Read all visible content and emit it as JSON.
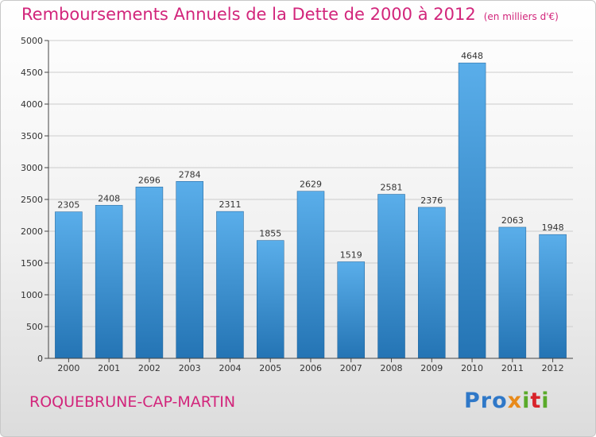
{
  "title": "Remboursements Annuels de la Dette de 2000 à 2012",
  "unit_note": "(en milliers d'€)",
  "city": "ROQUEBRUNE-CAP-MARTIN",
  "logo": {
    "p1": "Pro",
    "p2": "x",
    "p3": "i",
    "p4": "t",
    "p5": "i"
  },
  "colors": {
    "title": "#d2257b",
    "bar_top": "#5aaeea",
    "bar_bottom": "#2474b4",
    "axis": "#444444",
    "grid": "#cccccc"
  },
  "chart_data": {
    "type": "bar",
    "categories": [
      "2000",
      "2001",
      "2002",
      "2003",
      "2004",
      "2005",
      "2006",
      "2007",
      "2008",
      "2009",
      "2010",
      "2011",
      "2012"
    ],
    "values": [
      2305,
      2408,
      2696,
      2784,
      2311,
      1855,
      2629,
      1519,
      2581,
      2376,
      4648,
      2063,
      1948
    ],
    "yticks": [
      0,
      500,
      1000,
      1500,
      2000,
      2500,
      3000,
      3500,
      4000,
      4500,
      5000
    ],
    "ylim": [
      0,
      5000
    ],
    "grid": true,
    "data_labels": true
  }
}
